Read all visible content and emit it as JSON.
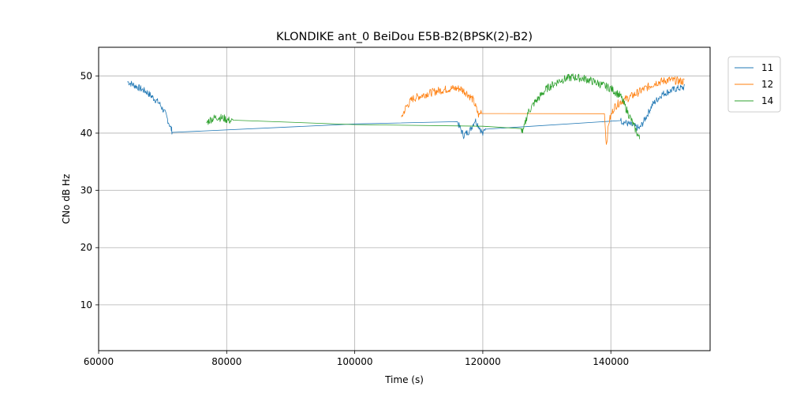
{
  "chart_data": {
    "type": "line",
    "title": "KLONDIKE ant_0 BeiDou E5B-B2(BPSK(2)-B2)",
    "xlabel": "Time (s)",
    "ylabel": "CNo dB Hz",
    "xlim": [
      60000,
      155500
    ],
    "ylim": [
      2,
      55
    ],
    "xticks": [
      60000,
      80000,
      100000,
      120000,
      140000
    ],
    "yticks": [
      10,
      20,
      30,
      40,
      50
    ],
    "grid": true,
    "legend_position": "upper-right-outside",
    "series": [
      {
        "name": "11",
        "color": "#1f77b4",
        "x": [
          64500,
          65500,
          66500,
          67500,
          68500,
          69500,
          70500,
          71300,
          71500,
          100000,
          116000,
          117000,
          118000,
          118800,
          119500,
          120000,
          120500,
          141500,
          143000,
          144500,
          145500,
          146500,
          148000,
          150000,
          151500
        ],
        "y": [
          49.0,
          48.4,
          47.8,
          47.2,
          46.2,
          45.2,
          43.2,
          40.8,
          40.3,
          41.6,
          42.0,
          39.6,
          40.5,
          42.3,
          41.0,
          39.8,
          41.2,
          42.2,
          41.5,
          40.8,
          42.8,
          45.0,
          46.8,
          47.7,
          48.0
        ],
        "noise": 0.6
      },
      {
        "name": "12",
        "color": "#ff7f0e",
        "x": [
          107300,
          108000,
          109000,
          111000,
          113000,
          115000,
          116500,
          117500,
          118500,
          119400,
          119800,
          139000,
          139300,
          139700,
          140500,
          141500,
          143000,
          145000,
          147000,
          149000,
          151500
        ],
        "y": [
          42.8,
          44.5,
          46.0,
          46.8,
          47.4,
          47.8,
          47.8,
          47.0,
          45.8,
          43.0,
          44.0,
          43.4,
          38.0,
          42.0,
          44.5,
          45.5,
          46.3,
          47.6,
          48.8,
          49.3,
          49.0
        ],
        "noise": 0.7
      },
      {
        "name": "14",
        "color": "#2ca02c",
        "x": [
          76800,
          77500,
          78500,
          79500,
          80500,
          81000,
          100000,
          120000,
          126000,
          126300,
          127000,
          128000,
          130000,
          132000,
          134000,
          136000,
          138000,
          140000,
          141500,
          142500,
          143500,
          144500
        ],
        "y": [
          41.8,
          42.4,
          42.8,
          42.6,
          42.2,
          42.0,
          41.5,
          41.2,
          40.8,
          40.2,
          43.5,
          45.2,
          47.8,
          49.2,
          49.8,
          49.5,
          48.7,
          47.8,
          46.5,
          44.0,
          41.5,
          39.0
        ],
        "noise": 0.7
      }
    ]
  }
}
